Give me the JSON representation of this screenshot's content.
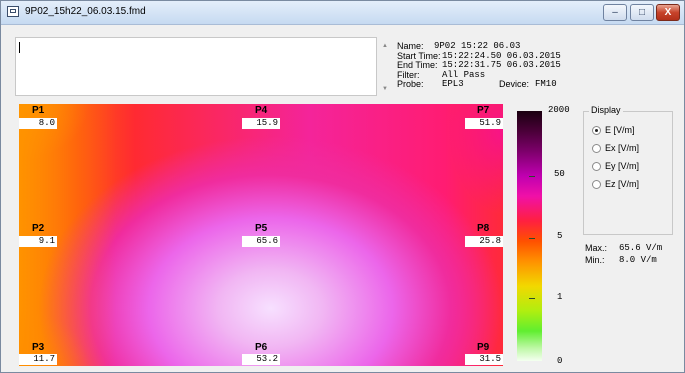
{
  "window": {
    "title": "9P02_15h22_06.03.15.fmd",
    "minimize_label": "–",
    "maximize_label": "□",
    "close_label": "X"
  },
  "editor": {
    "value": ""
  },
  "scroll": {
    "up_glyph": "▲",
    "down_glyph": "▼"
  },
  "info": {
    "name_label": "Name:",
    "name_value": "9P02 15:22 06.03",
    "start_label": "Start Time:",
    "start_value": "15:22:24.50  06.03.2015",
    "end_label": "End Time:",
    "end_value": "15:22:31.75  06.03.2015",
    "filter_label": "Filter:",
    "filter_value": "All Pass",
    "probe_label": "Probe:",
    "probe_value": "EPL3",
    "device_label": "Device:",
    "device_value": "FM10"
  },
  "probes": [
    {
      "name": "P1",
      "value": "8.0"
    },
    {
      "name": "P4",
      "value": "15.9"
    },
    {
      "name": "P7",
      "value": "51.9"
    },
    {
      "name": "P2",
      "value": "9.1"
    },
    {
      "name": "P5",
      "value": "65.6"
    },
    {
      "name": "P8",
      "value": "25.8"
    },
    {
      "name": "P3",
      "value": "11.7"
    },
    {
      "name": "P6",
      "value": "53.2"
    },
    {
      "name": "P9",
      "value": "31.5"
    }
  ],
  "scale": {
    "labels": [
      "2000",
      "50",
      "5",
      "1",
      "0"
    ]
  },
  "display": {
    "title": "Display",
    "options": [
      "E [V/m]",
      "Ex [V/m]",
      "Ey [V/m]",
      "Ez [V/m]"
    ],
    "selected": "E [V/m]"
  },
  "stats": {
    "max_label": "Max.:",
    "max_value": "65.6 V/m",
    "min_label": "Min.:",
    "min_value": "8.0 V/m"
  },
  "colors": {
    "titlebar": "#c6daf1",
    "close_button": "#c7432a"
  }
}
